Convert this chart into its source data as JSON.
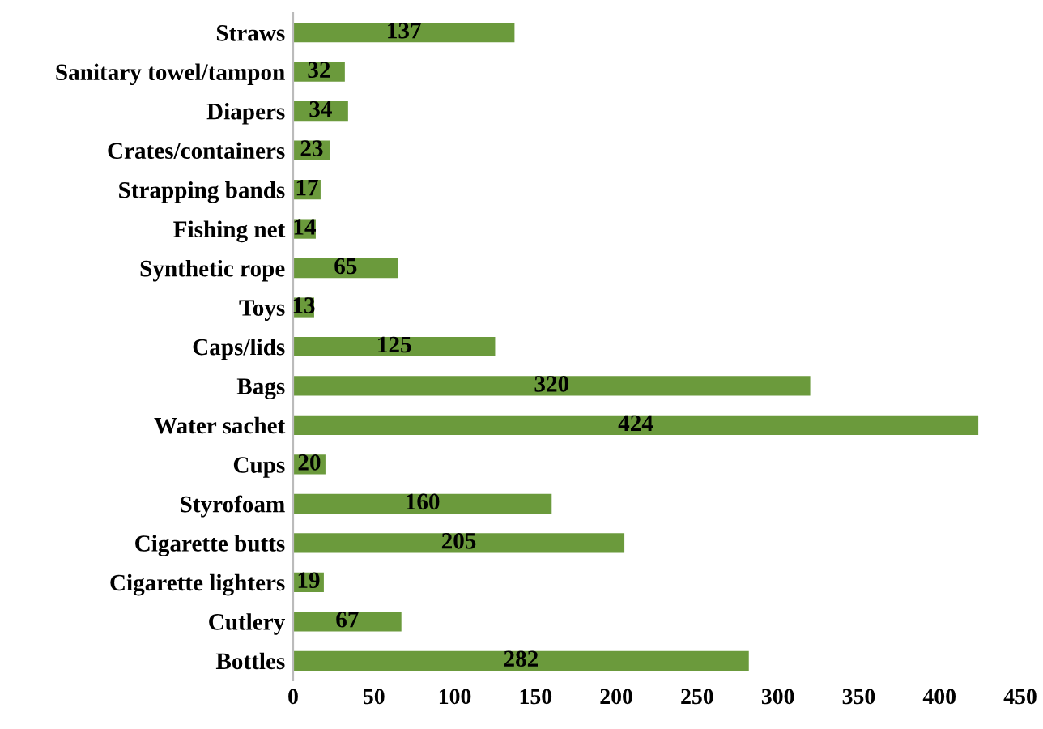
{
  "chart_data": {
    "type": "bar",
    "orientation": "horizontal",
    "categories": [
      "Straws",
      "Sanitary towel/tampon",
      "Diapers",
      "Crates/containers",
      "Strapping bands",
      "Fishing net",
      "Synthetic rope",
      "Toys",
      "Caps/lids",
      "Bags",
      "Water sachet",
      "Cups",
      "Styrofoam",
      "Cigarette butts",
      "Cigarette lighters",
      "Cutlery",
      "Bottles"
    ],
    "values": [
      137,
      32,
      34,
      23,
      17,
      14,
      65,
      13,
      125,
      320,
      424,
      20,
      160,
      205,
      19,
      67,
      282
    ],
    "color": "#6b9a3c",
    "xlim": [
      0,
      450
    ],
    "xticks": [
      0,
      50,
      100,
      150,
      200,
      250,
      300,
      350,
      400,
      450
    ],
    "data_labels": true,
    "grid": false,
    "legend": false
  }
}
